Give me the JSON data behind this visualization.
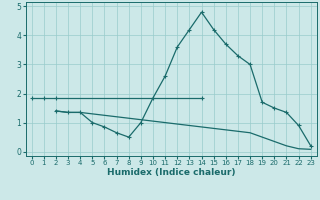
{
  "xlabel": "Humidex (Indice chaleur)",
  "background_color": "#cce8e8",
  "grid_color": "#99cccc",
  "line_color": "#1a6b6b",
  "x_ticks": [
    0,
    1,
    2,
    3,
    4,
    5,
    6,
    7,
    8,
    9,
    10,
    11,
    12,
    13,
    14,
    15,
    16,
    17,
    18,
    19,
    20,
    21,
    22,
    23
  ],
  "ylim": [
    -0.15,
    5.15
  ],
  "xlim": [
    -0.5,
    23.5
  ],
  "series1_x": [
    0,
    1,
    2,
    14
  ],
  "series1_y": [
    1.85,
    1.85,
    1.85,
    1.85
  ],
  "series2_x": [
    2,
    3,
    4,
    5,
    6,
    7,
    8,
    9,
    10,
    11,
    12,
    13,
    14,
    15,
    16,
    17,
    18,
    19,
    20,
    21,
    22,
    23
  ],
  "series2_y": [
    1.4,
    1.35,
    1.35,
    1.0,
    0.85,
    0.65,
    0.5,
    1.0,
    1.85,
    2.6,
    3.6,
    4.2,
    4.8,
    4.2,
    3.7,
    3.3,
    3.0,
    1.7,
    1.5,
    1.35,
    0.9,
    0.2
  ],
  "series3_x": [
    2,
    3,
    4,
    5,
    6,
    7,
    8,
    9,
    10,
    11,
    12,
    13,
    14,
    15,
    16,
    17,
    18,
    19,
    20,
    21,
    22,
    23
  ],
  "series3_y": [
    1.4,
    1.35,
    1.35,
    1.3,
    1.25,
    1.2,
    1.15,
    1.1,
    1.05,
    1.0,
    0.95,
    0.9,
    0.85,
    0.8,
    0.75,
    0.7,
    0.65,
    0.5,
    0.35,
    0.2,
    0.1,
    0.08
  ]
}
